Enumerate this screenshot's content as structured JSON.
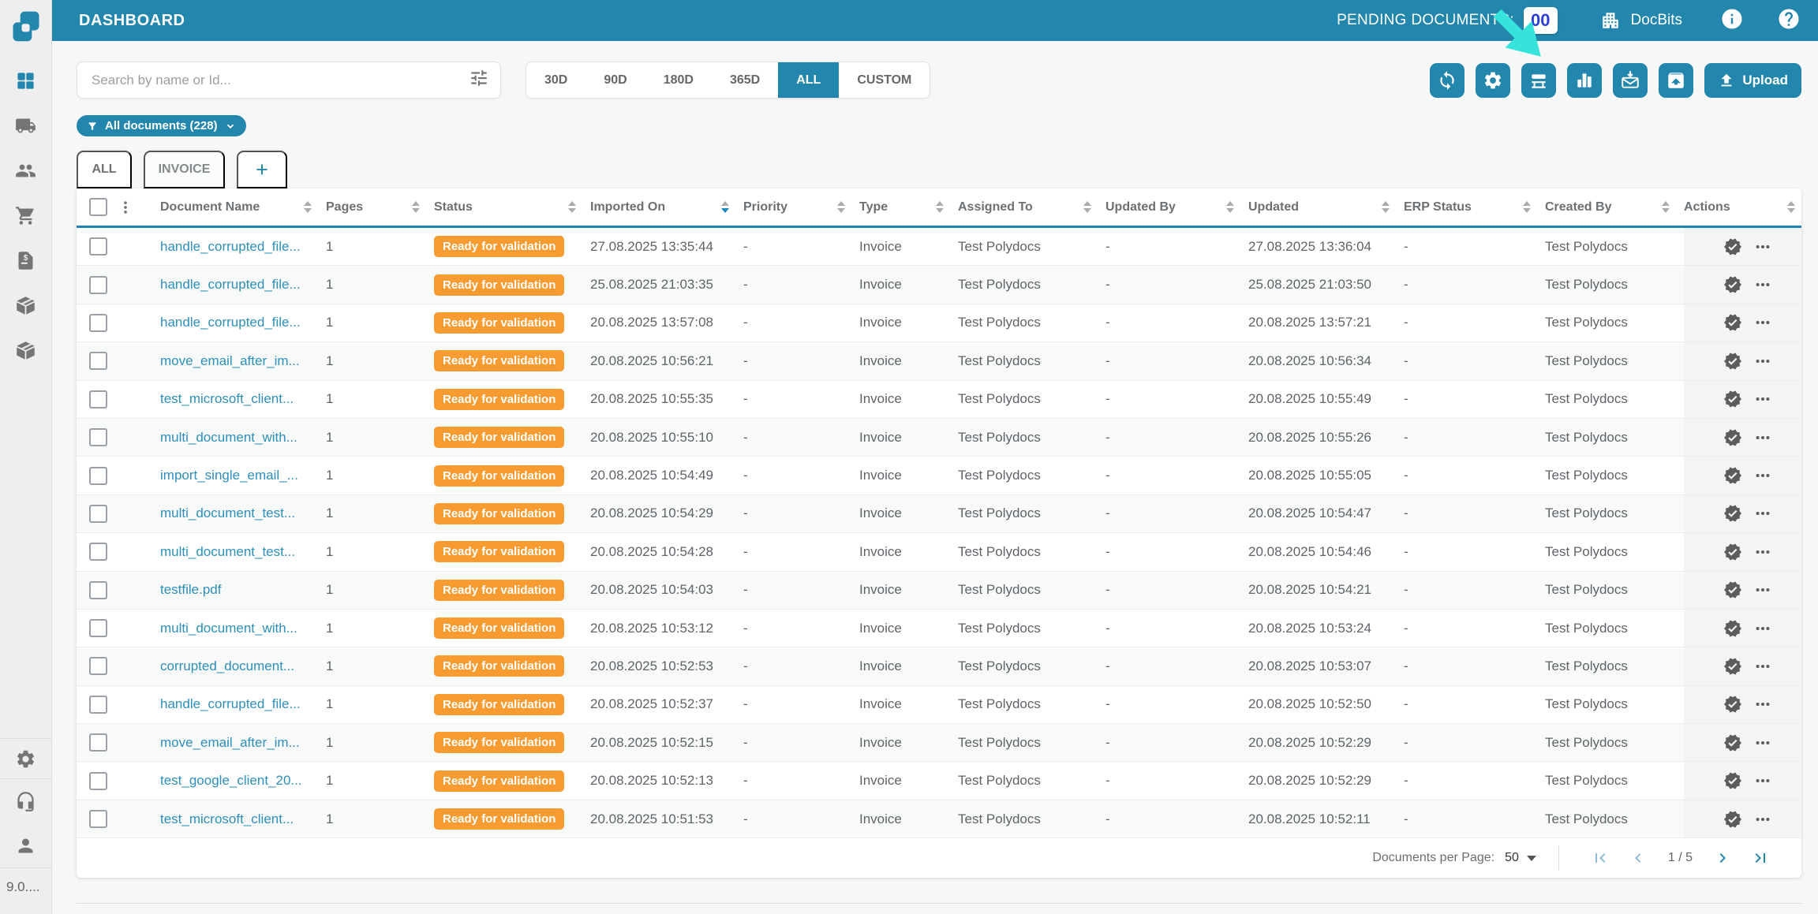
{
  "header": {
    "title": "DASHBOARD",
    "pending_label": "PENDING DOCUMENTS:",
    "pending_count": "00",
    "brand": "DocBits"
  },
  "sidebar": {
    "icons": [
      "dashboard",
      "shipping",
      "customers",
      "shopping-cart",
      "invoices",
      "package-1",
      "package-2",
      "settings",
      "support",
      "account"
    ],
    "active_icon": "dashboard",
    "version": "9.0...."
  },
  "toolbar": {
    "search_placeholder": "Search by name or Id...",
    "date_filters": [
      "30D",
      "90D",
      "180D",
      "365D",
      "ALL",
      "CUSTOM"
    ],
    "active_date_filter": "ALL",
    "icon_buttons": [
      "sync",
      "settings",
      "scanner",
      "analytics",
      "mail-import",
      "export-tray"
    ],
    "upload_label": "Upload"
  },
  "filter_chip": {
    "label": "All documents (228)"
  },
  "tabs": [
    {
      "label": "ALL",
      "active": true
    },
    {
      "label": "INVOICE",
      "active": false
    },
    {
      "label": "+",
      "active": false,
      "is_add": true
    }
  ],
  "table": {
    "columns": [
      {
        "label": "",
        "key": "select"
      },
      {
        "label": "Document Name",
        "key": "name",
        "sortable": true
      },
      {
        "label": "Pages",
        "key": "pages",
        "sortable": true
      },
      {
        "label": "Status",
        "key": "status",
        "sortable": true
      },
      {
        "label": "Imported On",
        "key": "imported_on",
        "sortable": true,
        "sorted": "desc"
      },
      {
        "label": "Priority",
        "key": "priority",
        "sortable": true
      },
      {
        "label": "Type",
        "key": "type",
        "sortable": true
      },
      {
        "label": "Assigned To",
        "key": "assigned_to",
        "sortable": true
      },
      {
        "label": "Updated By",
        "key": "updated_by",
        "sortable": true
      },
      {
        "label": "Updated",
        "key": "updated",
        "sortable": true
      },
      {
        "label": "ERP Status",
        "key": "erp_status",
        "sortable": true
      },
      {
        "label": "Created By",
        "key": "created_by",
        "sortable": true
      },
      {
        "label": "Actions",
        "key": "actions",
        "sortable": true
      }
    ],
    "rows": [
      {
        "name": "handle_corrupted_file...",
        "pages": "1",
        "status": "Ready for validation",
        "imported_on": "27.08.2025 13:35:44",
        "priority": "-",
        "type": "Invoice",
        "assigned_to": "Test Polydocs",
        "updated_by": "-",
        "updated": "27.08.2025 13:36:04",
        "erp_status": "-",
        "created_by": "Test Polydocs"
      },
      {
        "name": "handle_corrupted_file...",
        "pages": "1",
        "status": "Ready for validation",
        "imported_on": "25.08.2025 21:03:35",
        "priority": "-",
        "type": "Invoice",
        "assigned_to": "Test Polydocs",
        "updated_by": "-",
        "updated": "25.08.2025 21:03:50",
        "erp_status": "-",
        "created_by": "Test Polydocs"
      },
      {
        "name": "handle_corrupted_file...",
        "pages": "1",
        "status": "Ready for validation",
        "imported_on": "20.08.2025 13:57:08",
        "priority": "-",
        "type": "Invoice",
        "assigned_to": "Test Polydocs",
        "updated_by": "-",
        "updated": "20.08.2025 13:57:21",
        "erp_status": "-",
        "created_by": "Test Polydocs"
      },
      {
        "name": "move_email_after_im...",
        "pages": "1",
        "status": "Ready for validation",
        "imported_on": "20.08.2025 10:56:21",
        "priority": "-",
        "type": "Invoice",
        "assigned_to": "Test Polydocs",
        "updated_by": "-",
        "updated": "20.08.2025 10:56:34",
        "erp_status": "-",
        "created_by": "Test Polydocs"
      },
      {
        "name": "test_microsoft_client...",
        "pages": "1",
        "status": "Ready for validation",
        "imported_on": "20.08.2025 10:55:35",
        "priority": "-",
        "type": "Invoice",
        "assigned_to": "Test Polydocs",
        "updated_by": "-",
        "updated": "20.08.2025 10:55:49",
        "erp_status": "-",
        "created_by": "Test Polydocs"
      },
      {
        "name": "multi_document_with...",
        "pages": "1",
        "status": "Ready for validation",
        "imported_on": "20.08.2025 10:55:10",
        "priority": "-",
        "type": "Invoice",
        "assigned_to": "Test Polydocs",
        "updated_by": "-",
        "updated": "20.08.2025 10:55:26",
        "erp_status": "-",
        "created_by": "Test Polydocs"
      },
      {
        "name": "import_single_email_...",
        "pages": "1",
        "status": "Ready for validation",
        "imported_on": "20.08.2025 10:54:49",
        "priority": "-",
        "type": "Invoice",
        "assigned_to": "Test Polydocs",
        "updated_by": "-",
        "updated": "20.08.2025 10:55:05",
        "erp_status": "-",
        "created_by": "Test Polydocs"
      },
      {
        "name": "multi_document_test...",
        "pages": "1",
        "status": "Ready for validation",
        "imported_on": "20.08.2025 10:54:29",
        "priority": "-",
        "type": "Invoice",
        "assigned_to": "Test Polydocs",
        "updated_by": "-",
        "updated": "20.08.2025 10:54:47",
        "erp_status": "-",
        "created_by": "Test Polydocs"
      },
      {
        "name": "multi_document_test...",
        "pages": "1",
        "status": "Ready for validation",
        "imported_on": "20.08.2025 10:54:28",
        "priority": "-",
        "type": "Invoice",
        "assigned_to": "Test Polydocs",
        "updated_by": "-",
        "updated": "20.08.2025 10:54:46",
        "erp_status": "-",
        "created_by": "Test Polydocs"
      },
      {
        "name": "testfile.pdf",
        "pages": "1",
        "status": "Ready for validation",
        "imported_on": "20.08.2025 10:54:03",
        "priority": "-",
        "type": "Invoice",
        "assigned_to": "Test Polydocs",
        "updated_by": "-",
        "updated": "20.08.2025 10:54:21",
        "erp_status": "-",
        "created_by": "Test Polydocs"
      },
      {
        "name": "multi_document_with...",
        "pages": "1",
        "status": "Ready for validation",
        "imported_on": "20.08.2025 10:53:12",
        "priority": "-",
        "type": "Invoice",
        "assigned_to": "Test Polydocs",
        "updated_by": "-",
        "updated": "20.08.2025 10:53:24",
        "erp_status": "-",
        "created_by": "Test Polydocs"
      },
      {
        "name": "corrupted_document...",
        "pages": "1",
        "status": "Ready for validation",
        "imported_on": "20.08.2025 10:52:53",
        "priority": "-",
        "type": "Invoice",
        "assigned_to": "Test Polydocs",
        "updated_by": "-",
        "updated": "20.08.2025 10:53:07",
        "erp_status": "-",
        "created_by": "Test Polydocs"
      },
      {
        "name": "handle_corrupted_file...",
        "pages": "1",
        "status": "Ready for validation",
        "imported_on": "20.08.2025 10:52:37",
        "priority": "-",
        "type": "Invoice",
        "assigned_to": "Test Polydocs",
        "updated_by": "-",
        "updated": "20.08.2025 10:52:50",
        "erp_status": "-",
        "created_by": "Test Polydocs"
      },
      {
        "name": "move_email_after_im...",
        "pages": "1",
        "status": "Ready for validation",
        "imported_on": "20.08.2025 10:52:15",
        "priority": "-",
        "type": "Invoice",
        "assigned_to": "Test Polydocs",
        "updated_by": "-",
        "updated": "20.08.2025 10:52:29",
        "erp_status": "-",
        "created_by": "Test Polydocs"
      },
      {
        "name": "test_google_client_20...",
        "pages": "1",
        "status": "Ready for validation",
        "imported_on": "20.08.2025 10:52:13",
        "priority": "-",
        "type": "Invoice",
        "assigned_to": "Test Polydocs",
        "updated_by": "-",
        "updated": "20.08.2025 10:52:29",
        "erp_status": "-",
        "created_by": "Test Polydocs"
      },
      {
        "name": "test_microsoft_client...",
        "pages": "1",
        "status": "Ready for validation",
        "imported_on": "20.08.2025 10:51:53",
        "priority": "-",
        "type": "Invoice",
        "assigned_to": "Test Polydocs",
        "updated_by": "-",
        "updated": "20.08.2025 10:52:11",
        "erp_status": "-",
        "created_by": "Test Polydocs"
      }
    ]
  },
  "pagination": {
    "per_page_label": "Documents per Page:",
    "per_page": "50",
    "page_indicator": "1 / 5"
  },
  "colors": {
    "accent_teal": "#2386AD",
    "badge_orange": "#F89C31",
    "link_blue": "#2D8FBA",
    "pending_count_blue": "#2B3FD6",
    "cursor_arrow_cyan": "#35E3DB"
  }
}
